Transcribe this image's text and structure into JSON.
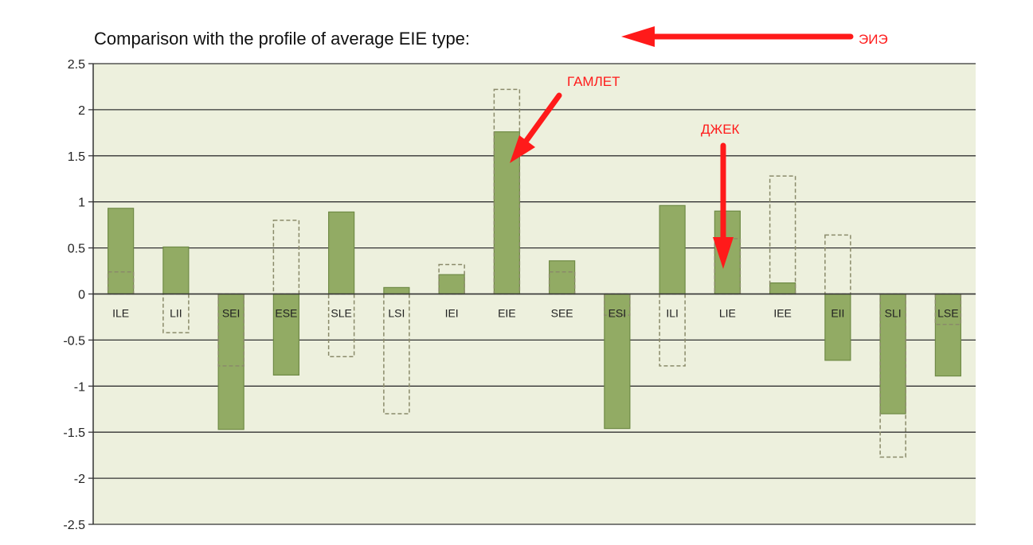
{
  "colors": {
    "plot_bg": "#edf0dd",
    "bar_fill": "#92ab64",
    "bar_stroke": "#6f8a45",
    "dashed": "#8a8a6a",
    "grid": "#333333",
    "annotation": "#ff1a1a"
  },
  "annotations": {
    "title_arrow_label": "ЭИЭ",
    "hamlet_label": "ГАМЛЕТ",
    "jack_label": "ДЖЕК"
  },
  "chart_data": {
    "type": "bar",
    "title": "Comparison with the profile of average EIE type:",
    "xlabel": "",
    "ylabel": "",
    "ylim": [
      -2.5,
      2.5
    ],
    "yticks": [
      "2.5",
      "2",
      "1.5",
      "1",
      "0.5",
      "0",
      "-0.5",
      "-1",
      "-1.5",
      "-2",
      "-2.5"
    ],
    "grid": true,
    "categories": [
      "ILE",
      "LII",
      "SEI",
      "ESE",
      "SLE",
      "LSI",
      "IEI",
      "EIE",
      "SEE",
      "ESI",
      "ILI",
      "LIE",
      "IEE",
      "EII",
      "SLI",
      "LSE"
    ],
    "series": [
      {
        "values": [
          0.93,
          0.51,
          -1.47,
          -0.88,
          0.89,
          0.07,
          0.21,
          1.76,
          0.36,
          -1.46,
          0.96,
          0.9,
          0.12,
          -0.72,
          -1.3,
          -0.89
        ]
      },
      {
        "values": [
          0.24,
          -0.42,
          -0.78,
          0.8,
          -0.68,
          -1.3,
          0.32,
          2.22,
          0.24,
          -0.23,
          -0.78,
          0.6,
          1.28,
          0.64,
          -1.77,
          -0.33
        ]
      }
    ]
  }
}
